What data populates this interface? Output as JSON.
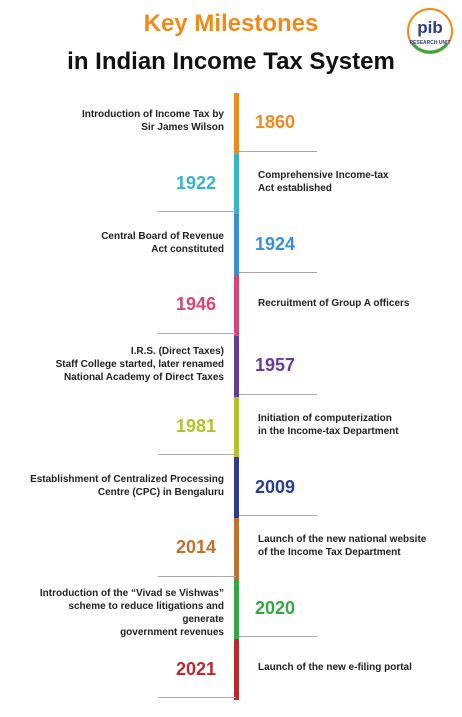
{
  "header": {
    "title_line1": "Key Milestones",
    "title_line2": "in Indian Income Tax System",
    "logo_text": "pib",
    "logo_subtext": "RESEARCH UNIT"
  },
  "milestones": [
    {
      "year": "1860",
      "color": "#f08a1c",
      "side": "right",
      "lines": [
        "Introduction of Income Tax by",
        "Sir James Wilson"
      ]
    },
    {
      "year": "1922",
      "color": "#35b6c8",
      "side": "left",
      "lines": [
        "Comprehensive Income-tax",
        "Act established"
      ]
    },
    {
      "year": "1924",
      "color": "#3a8ed6",
      "side": "right",
      "lines": [
        "Central Board of Revenue",
        "Act constituted"
      ]
    },
    {
      "year": "1946",
      "color": "#d8457a",
      "side": "left",
      "lines": [
        "Recruitment of Group A officers"
      ]
    },
    {
      "year": "1957",
      "color": "#673b98",
      "side": "right",
      "lines": [
        "I.R.S. (Direct Taxes)",
        "Staff College started, later renamed",
        "National Academy of Direct Taxes"
      ]
    },
    {
      "year": "1981",
      "color": "#b4c22a",
      "side": "left",
      "lines": [
        "Initiation of computerization",
        "in the Income-tax Department"
      ]
    },
    {
      "year": "2009",
      "color": "#2d3c8e",
      "side": "right",
      "lines": [
        "Establishment of Centralized Processing",
        "Centre (CPC) in Bengaluru"
      ]
    },
    {
      "year": "2014",
      "color": "#c0702e",
      "side": "left",
      "lines": [
        "Launch of the new national website",
        "of the Income Tax Department"
      ]
    },
    {
      "year": "2020",
      "color": "#38a644",
      "side": "right",
      "lines": [
        "Introduction of the “Vivad se Vishwas”",
        "scheme to reduce litigations and generate",
        "government revenues"
      ]
    },
    {
      "year": "2021",
      "color": "#c0272d",
      "side": "left",
      "lines": [
        "Launch of the new e-filing portal"
      ]
    }
  ]
}
